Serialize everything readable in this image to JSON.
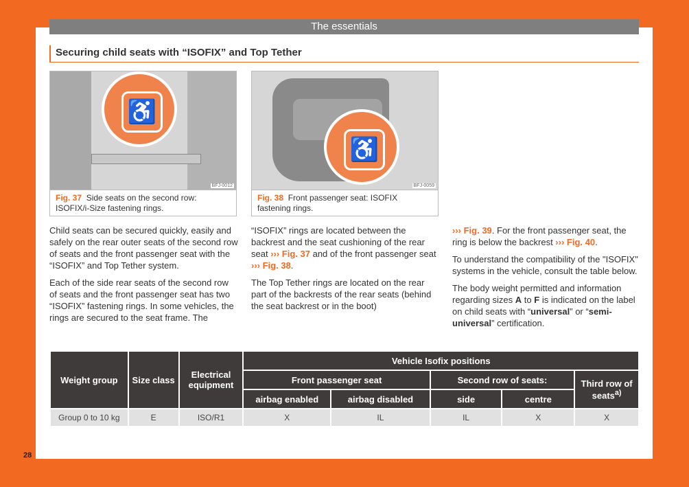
{
  "header": "The essentials",
  "title": "Securing child seats with “ISOFIX” and Top Tether",
  "figures": [
    {
      "num": "Fig. 37",
      "caption": "Side seats on the second row: ISOFIX/i-Size fastening rings.",
      "code": "BFJ-0012"
    },
    {
      "num": "Fig. 38",
      "caption": "Front passenger seat: ISOFIX fastening rings.",
      "code": "BFJ-0059"
    }
  ],
  "col1": [
    "Child seats can be secured quickly, easily and safely on the rear outer seats of the second row of seats and the front passenger seat with the “ISOFIX” and Top Tether system.",
    "Each of the side rear seats of the second row of seats and the front passenger seat has two “ISOFIX” fastening rings. In some vehicles, the rings are secured to the seat frame. The"
  ],
  "col2": {
    "p1a": "“ISOFIX” rings are located between the backrest and the seat cushioning of the rear seat",
    "ref1": "››› Fig. 37",
    "p1b": " and of the front passenger seat ",
    "ref2": "››› Fig. 38",
    "p1c": ".",
    "p2": "The Top Tether rings are located on the rear part of the backrests of the rear seats (behind the seat backrest or in the boot)"
  },
  "col3": {
    "ref1": "››› Fig. 39",
    "p1a": ". For the front passenger seat, the ring is below the backrest ",
    "ref2": "››› Fig. 40",
    "p1b": ".",
    "p2": "To understand the compatibility of the \"ISOFIX\" systems in the vehicle, consult the table below.",
    "p3a": "The body weight permitted and information regarding sizes ",
    "A": "A",
    "to": " to ",
    "F": "F",
    "p3b": " is indicated on the label on child seats with “",
    "universal": "universal",
    "or": "” or “",
    "semi": "semi-universal",
    "p3c": "” certification."
  },
  "table": {
    "h_weight": "Weight group",
    "h_size": "Size class",
    "h_elec": "Electrical equipment",
    "h_vehicle": "Vehicle Isofix positions",
    "h_front": "Front passenger seat",
    "h_second": "Second row of seats:",
    "h_third": "Third row of seats",
    "h_third_sup": "a)",
    "h_ab_en": "airbag enabled",
    "h_ab_dis": "airbag disabled",
    "h_side": "side",
    "h_centre": "centre",
    "rows": [
      [
        "Group 0 to 10 kg",
        "E",
        "ISO/R1",
        "X",
        "IL",
        "IL",
        "X",
        "X"
      ]
    ]
  },
  "page_number": "28"
}
